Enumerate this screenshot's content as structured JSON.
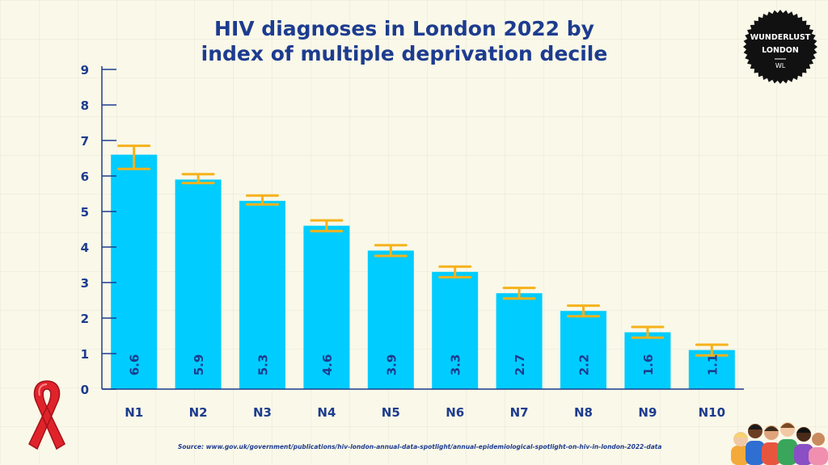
{
  "title_line1": "HIV diagnoses in London 2022 by",
  "title_line2": "index of multiple deprivation decile",
  "source": "Source: www.gov.uk/government/publications/hiv-london-annual-data-spotlight/annual-epidemiological-spotlight-on-hiv-in-london-2022-data",
  "logo": {
    "line1": "WUNDERLUST",
    "line2": "LONDON",
    "line3": "WL"
  },
  "colors": {
    "bar": "#00ccff",
    "error_bar": "#f5b21a",
    "text": "#1d3c8f",
    "axis": "#1d3c8f",
    "ribbon": "#e0232b"
  },
  "icons": [
    "red-ribbon-icon",
    "people-group-icon"
  ],
  "chart_data": {
    "type": "bar",
    "title": "HIV diagnoses in London 2022 by index of multiple deprivation decile",
    "categories": [
      "N1",
      "N2",
      "N3",
      "N4",
      "N5",
      "N6",
      "N7",
      "N8",
      "N9",
      "N10"
    ],
    "values": [
      6.6,
      5.9,
      5.3,
      4.6,
      3.9,
      3.3,
      2.7,
      2.2,
      1.6,
      1.1
    ],
    "error_low": [
      6.2,
      5.8,
      5.2,
      4.45,
      3.75,
      3.15,
      2.55,
      2.05,
      1.45,
      0.95
    ],
    "error_high": [
      6.85,
      6.05,
      5.45,
      4.75,
      4.05,
      3.45,
      2.85,
      2.35,
      1.75,
      1.25
    ],
    "yticks": [
      0,
      1,
      2,
      3,
      4,
      5,
      6,
      7,
      8,
      9
    ],
    "ylim": [
      0,
      9
    ],
    "xlabel": "",
    "ylabel": "",
    "grid": false,
    "legend": "none",
    "data_labels": "inside-bar-bottom-rotated"
  }
}
